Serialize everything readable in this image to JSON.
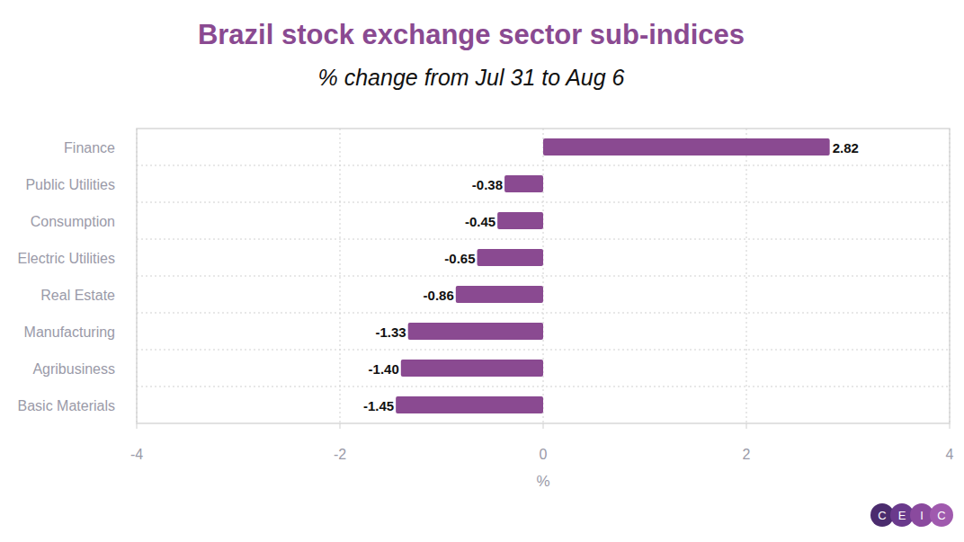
{
  "chart_data": {
    "type": "bar",
    "orientation": "horizontal",
    "title": "Brazil stock exchange sector sub-indices",
    "subtitle": "% change from Jul 31 to Aug 6",
    "x_label": "%",
    "categories": [
      "Finance",
      "Public Utilities",
      "Consumption",
      "Electric Utilities",
      "Real Estate",
      "Manufacturing",
      "Agribusiness",
      "Basic Materials"
    ],
    "values": [
      2.82,
      -0.38,
      -0.45,
      -0.65,
      -0.86,
      -1.33,
      -1.4,
      -1.45
    ],
    "value_labels": [
      "2.82",
      "-0.38",
      "-0.45",
      "-0.65",
      "-0.86",
      "-1.33",
      "-1.40",
      "-1.45"
    ],
    "color": "#8a4a91",
    "xlim": [
      -4,
      4
    ],
    "xticks": [
      -4,
      -2,
      0,
      2,
      4
    ],
    "grid": true,
    "data_labels": true,
    "logo": [
      "C",
      "E",
      "I",
      "C"
    ]
  }
}
